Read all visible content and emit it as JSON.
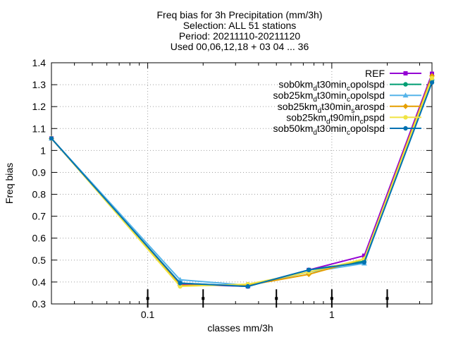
{
  "chart_data": {
    "type": "line",
    "title_lines": [
      "Freq bias  for 3h Precipitation (mm/3h)",
      "Selection: ALL     51 stations",
      "Period: 20211110-20211120",
      "Used 00,06,12,18 + 03 04 ... 36"
    ],
    "xlabel": "classes mm/3h",
    "ylabel": "Freq bias",
    "x_scale": "log",
    "xlim": [
      0.03,
      3.5
    ],
    "ylim": [
      0.3,
      1.4
    ],
    "y_ticks": [
      0.3,
      0.4,
      0.5,
      0.6,
      0.7,
      0.8,
      0.9,
      1,
      1.1,
      1.2,
      1.3,
      1.4
    ],
    "x_ticks": [
      0.1,
      1
    ],
    "x_tick_labels": [
      "0.1",
      "1"
    ],
    "grid": true,
    "legend_position": "top-right",
    "class_marks": [
      0.1,
      0.2,
      0.5,
      1,
      2
    ],
    "x": [
      0.03,
      0.15,
      0.35,
      0.75,
      1.5,
      3.5
    ],
    "series": [
      {
        "name": "REF",
        "sub": [],
        "color": "#9400d3",
        "marker": "square",
        "values": [
          1.055,
          0.39,
          0.38,
          0.455,
          0.52,
          1.35
        ]
      },
      {
        "name": "sob0km",
        "sub": [
          [
            "d",
            "t30min"
          ],
          [
            "c",
            "opolspd"
          ]
        ],
        "color": "#009e73",
        "marker": "circle",
        "values": [
          1.055,
          0.395,
          0.38,
          0.455,
          0.495,
          1.32
        ]
      },
      {
        "name": "sob25km",
        "sub": [
          [
            "d",
            "t30min"
          ],
          [
            "c",
            "opolspd"
          ]
        ],
        "color": "#56b4e9",
        "marker": "triangle",
        "values": [
          1.055,
          0.41,
          0.385,
          0.445,
          0.485,
          1.33
        ]
      },
      {
        "name": "sob25km",
        "sub": [
          [
            "d",
            "t30min"
          ],
          [
            "s",
            "arospd"
          ]
        ],
        "color": "#e69f00",
        "marker": "diamond",
        "values": [
          1.055,
          0.385,
          0.385,
          0.435,
          0.505,
          1.34
        ]
      },
      {
        "name": "sob25km",
        "sub": [
          [
            "d",
            "t90min"
          ],
          [
            "c",
            "pspd"
          ]
        ],
        "color": "#f0e442",
        "marker": "circle",
        "values": [
          1.055,
          0.38,
          0.39,
          0.445,
          0.505,
          1.33
        ]
      },
      {
        "name": "sob50km",
        "sub": [
          [
            "d",
            "t30min"
          ],
          [
            "c",
            "opolspd"
          ]
        ],
        "color": "#0072b2",
        "marker": "circle",
        "values": [
          1.055,
          0.395,
          0.38,
          0.455,
          0.49,
          1.31
        ]
      }
    ]
  }
}
